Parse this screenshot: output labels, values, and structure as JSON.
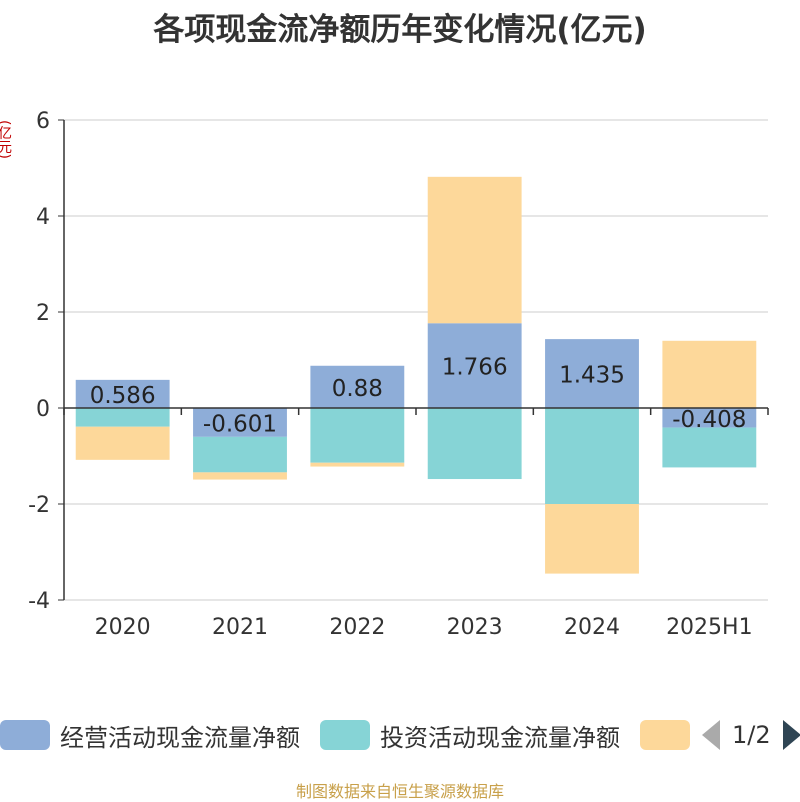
{
  "title": "各项现金流净额历年变化情况(亿元)",
  "unit": "(亿元)",
  "footer": "制图数据来自恒生聚源数据库",
  "pager": {
    "text": "1/2"
  },
  "colors": {
    "operating": "#8eadd8",
    "investing": "#86d4d6",
    "financing": "#fdd89a",
    "axis": "#333333",
    "grid": "#cccccc"
  },
  "chart_data": {
    "type": "bar",
    "stacked": true,
    "categories": [
      "2020",
      "2021",
      "2022",
      "2023",
      "2024",
      "2025H1"
    ],
    "series": [
      {
        "name": "经营活动现金流量净额",
        "values": [
          0.586,
          -0.601,
          0.88,
          1.766,
          1.435,
          -0.408
        ]
      },
      {
        "name": "投资活动现金流量净额",
        "values": [
          -0.39,
          -0.74,
          -1.14,
          -1.48,
          -2.0,
          -0.83
        ]
      },
      {
        "name": "",
        "values": [
          -0.69,
          -0.15,
          -0.08,
          3.05,
          -1.45,
          1.4
        ]
      }
    ],
    "data_labels": [
      "0.586",
      "-0.601",
      "0.88",
      "1.766",
      "1.435",
      "-0.408"
    ],
    "y_ticks": [
      "6",
      "4",
      "2",
      "0",
      "-2",
      "-4"
    ],
    "ylim": [
      -4,
      6
    ],
    "grid": true,
    "legend_position": "bottom"
  }
}
